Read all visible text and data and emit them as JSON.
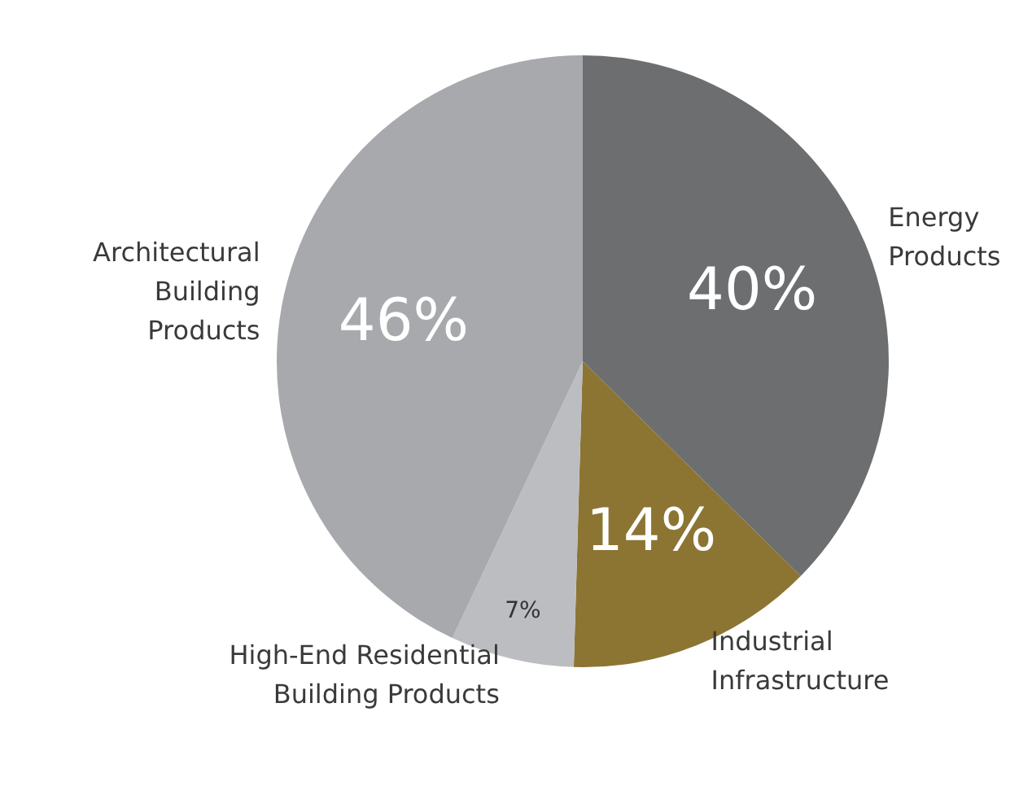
{
  "chart_data": {
    "type": "pie",
    "categories": [
      "Energy Products",
      "Industrial Infrastructure",
      "High-End Residential Building Products",
      "Architectural Building Products"
    ],
    "values": [
      40,
      14,
      7,
      46
    ],
    "colors": [
      "#6d6e70",
      "#8c7533",
      "#bcbdc0",
      "#a7a9ac"
    ],
    "value_labels": [
      "40%",
      "14%",
      "7%",
      "46%"
    ],
    "legend": false
  }
}
